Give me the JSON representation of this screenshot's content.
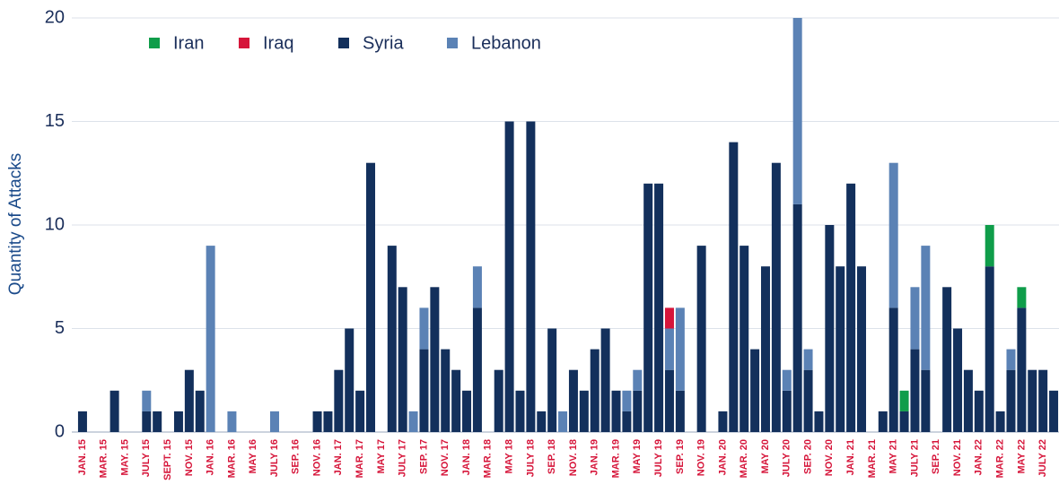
{
  "chart_data": {
    "type": "bar",
    "stacked": true,
    "y_label": "Quantity of Attacks",
    "categories": [
      "JAN. 15",
      null,
      "MAR. 15",
      null,
      "MAY. 15",
      null,
      "JULY 15",
      null,
      "SEPT. 15",
      null,
      "NOV. 15",
      null,
      "JAN. 16",
      null,
      "MAR. 16",
      null,
      "MAY 16",
      null,
      "JULY 16",
      null,
      "SEP. 16",
      null,
      "NOV. 16",
      null,
      "JAN. 17",
      null,
      "MAR. 17",
      null,
      "MAY 17",
      null,
      "JULY 17",
      null,
      "SEP. 17",
      null,
      "NOV. 17",
      null,
      "JAN. 18",
      null,
      "MAR. 18",
      null,
      "MAY 18",
      null,
      "JULY 18",
      null,
      "SEP. 18",
      null,
      "NOV. 18",
      null,
      "JAN. 19",
      null,
      "MAR. 19",
      null,
      "MAY 19",
      null,
      "JULY 19",
      null,
      "SEP. 19",
      null,
      "NOV. 19",
      null,
      "JAN. 20",
      null,
      "MAR. 20",
      null,
      "MAY 20",
      null,
      "JULY 20",
      null,
      "SEP. 20",
      null,
      "NOV. 20",
      null,
      "JAN. 21",
      null,
      "MAR. 21",
      null,
      "MAY 21",
      null,
      "JULY 21",
      null,
      "SEP. 21",
      null,
      "NOV. 21",
      null,
      "JAN. 22",
      null,
      "MAR. 22",
      null,
      "MAY 22",
      null,
      "JULY 22",
      null
    ],
    "series": [
      {
        "name": "Iran",
        "color": "#0f9d4a",
        "values": [
          0,
          0,
          0,
          0,
          0,
          0,
          0,
          0,
          0,
          0,
          0,
          0,
          0,
          0,
          0,
          0,
          0,
          0,
          0,
          0,
          0,
          0,
          0,
          0,
          0,
          0,
          0,
          0,
          0,
          0,
          0,
          0,
          0,
          0,
          0,
          0,
          0,
          0,
          0,
          0,
          0,
          0,
          0,
          0,
          0,
          0,
          0,
          0,
          0,
          0,
          0,
          0,
          0,
          0,
          0,
          0,
          0,
          0,
          0,
          0,
          0,
          0,
          0,
          0,
          0,
          0,
          0,
          0,
          0,
          0,
          0,
          0,
          0,
          0,
          0,
          0,
          0,
          1,
          0,
          0,
          0,
          0,
          0,
          0,
          0,
          2,
          0,
          0,
          1,
          0,
          0,
          0
        ]
      },
      {
        "name": "Iraq",
        "color": "#d6153a",
        "values": [
          0,
          0,
          0,
          0,
          0,
          0,
          0,
          0,
          0,
          0,
          0,
          0,
          0,
          0,
          0,
          0,
          0,
          0,
          0,
          0,
          0,
          0,
          0,
          0,
          0,
          0,
          0,
          0,
          0,
          0,
          0,
          0,
          0,
          0,
          0,
          0,
          0,
          0,
          0,
          0,
          0,
          0,
          0,
          0,
          0,
          0,
          0,
          0,
          0,
          0,
          0,
          0,
          0,
          0,
          0,
          1,
          0,
          0,
          0,
          0,
          0,
          0,
          0,
          0,
          0,
          0,
          0,
          0,
          0,
          0,
          0,
          0,
          0,
          0,
          0,
          0,
          0,
          0,
          0,
          0,
          0,
          0,
          0,
          0,
          0,
          0,
          0,
          0,
          0,
          0,
          0,
          0
        ]
      },
      {
        "name": "Syria",
        "color": "#13305c",
        "values": [
          1,
          0,
          0,
          2,
          0,
          0,
          1,
          1,
          0,
          1,
          3,
          2,
          0,
          0,
          0,
          0,
          0,
          0,
          0,
          0,
          0,
          0,
          1,
          1,
          3,
          5,
          2,
          13,
          0,
          9,
          7,
          0,
          4,
          7,
          4,
          3,
          2,
          6,
          0,
          3,
          15,
          2,
          15,
          1,
          5,
          0,
          3,
          2,
          4,
          5,
          2,
          1,
          2,
          12,
          12,
          3,
          2,
          0,
          9,
          0,
          1,
          14,
          9,
          4,
          8,
          13,
          2,
          11,
          3,
          1,
          10,
          8,
          12,
          8,
          0,
          1,
          6,
          1,
          4,
          3,
          0,
          7,
          5,
          3,
          2,
          8,
          1,
          3,
          6,
          3,
          3,
          2
        ]
      },
      {
        "name": "Lebanon",
        "color": "#5b82b5",
        "values": [
          0,
          0,
          0,
          0,
          0,
          0,
          1,
          0,
          0,
          0,
          0,
          0,
          9,
          0,
          1,
          0,
          0,
          0,
          1,
          0,
          0,
          0,
          0,
          0,
          0,
          0,
          0,
          0,
          0,
          0,
          0,
          1,
          2,
          0,
          0,
          0,
          0,
          2,
          0,
          0,
          0,
          0,
          0,
          0,
          0,
          1,
          0,
          0,
          0,
          0,
          0,
          1,
          1,
          0,
          0,
          2,
          4,
          0,
          0,
          0,
          0,
          0,
          0,
          0,
          0,
          0,
          1,
          9,
          1,
          0,
          0,
          0,
          0,
          0,
          0,
          0,
          7,
          0,
          3,
          6,
          0,
          0,
          0,
          0,
          0,
          0,
          0,
          1,
          0,
          0,
          0,
          0
        ]
      }
    ],
    "ylim": [
      0,
      20
    ],
    "yticks": [
      0,
      5,
      10,
      15,
      20
    ],
    "grid": true,
    "legend": "top-left",
    "category_label_color": "#d6153a"
  }
}
